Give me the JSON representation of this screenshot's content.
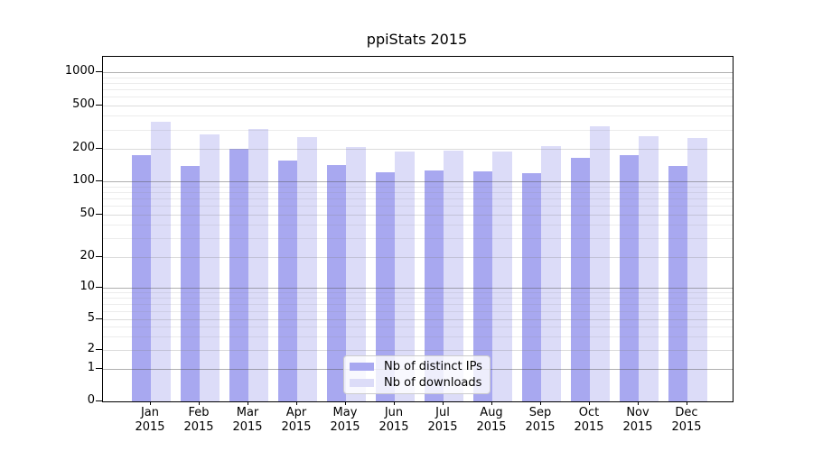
{
  "page": {
    "background": "#ffffff"
  },
  "chart_data": {
    "type": "bar",
    "title": "ppiStats 2015",
    "xlabel": "",
    "ylabel": "",
    "scale_y": "log-like with ticks 0,1,2,5,10,20,50,100,200,500,1000",
    "ylim": [
      0,
      1400
    ],
    "grid": true,
    "legend_position": "bottom-center",
    "categories": [
      "Jan",
      "Feb",
      "Mar",
      "Apr",
      "May",
      "Jun",
      "Jul",
      "Aug",
      "Sep",
      "Oct",
      "Nov",
      "Dec"
    ],
    "x_year": "2015",
    "yticks": [
      1000,
      500,
      200,
      100,
      50,
      20,
      10,
      5,
      2,
      1,
      0
    ],
    "minor_grid_values": [
      3,
      4,
      6,
      7,
      8,
      9,
      30,
      40,
      60,
      70,
      80,
      90,
      300,
      400,
      600,
      700,
      800,
      900
    ],
    "series": [
      {
        "name": "Nb of distinct IPs",
        "color": "#a8a8f0",
        "values": [
          175,
          139,
          200,
          155,
          141,
          122,
          127,
          124,
          120,
          165,
          176,
          138
        ]
      },
      {
        "name": "Nb of downloads",
        "color": "#dcdcf8",
        "values": [
          350,
          270,
          305,
          255,
          207,
          189,
          194,
          190,
          212,
          320,
          260,
          253
        ]
      }
    ]
  }
}
